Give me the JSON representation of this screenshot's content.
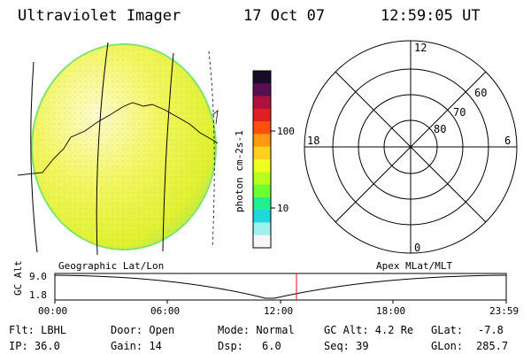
{
  "header": {
    "instrument": "Ultraviolet Imager",
    "date": "17 Oct 07",
    "time": "12:59:05 UT"
  },
  "colorbar": {
    "unit_label": "photon cm-2s-1",
    "ticks": [
      "100",
      "10"
    ],
    "colors": [
      "#1a0a2a",
      "#5a1050",
      "#b01040",
      "#e02020",
      "#ff5010",
      "#ff9a10",
      "#ffd020",
      "#f0ff20",
      "#b8ff20",
      "#70ff30",
      "#20f090",
      "#20d8d8",
      "#a0f0f0",
      "#f6f6f6"
    ]
  },
  "polar_plot": {
    "mlt_labels": [
      "12",
      "18",
      "6",
      "0"
    ],
    "lat_labels": [
      "60",
      "70",
      "80"
    ]
  },
  "timeline": {
    "left_title": "Geographic Lat/Lon",
    "right_title": "Apex MLat/MLT",
    "yaxis_label": "GC Alt",
    "y_ticks": [
      "9.0",
      "1.8"
    ],
    "x_ticks": [
      "00:00",
      "06:00",
      "12:00",
      "18:00",
      "23:59"
    ],
    "current_time_marker": "12:59",
    "marker_color": "#e01010"
  },
  "status": {
    "filter": "Flt: LBHL",
    "ip": "IP: 36.0",
    "door": "Door: Open",
    "gain": "Gain: 14",
    "mode": "Mode: Normal",
    "dsp": "Dsp:",
    "dsp_value": "6.0",
    "gc_alt": "GC Alt: 4.2 Re",
    "seq": "Seq: 39",
    "glat": "GLat:",
    "glat_value": "-7.8",
    "glon": "GLon:",
    "glon_value": "285.7"
  }
}
